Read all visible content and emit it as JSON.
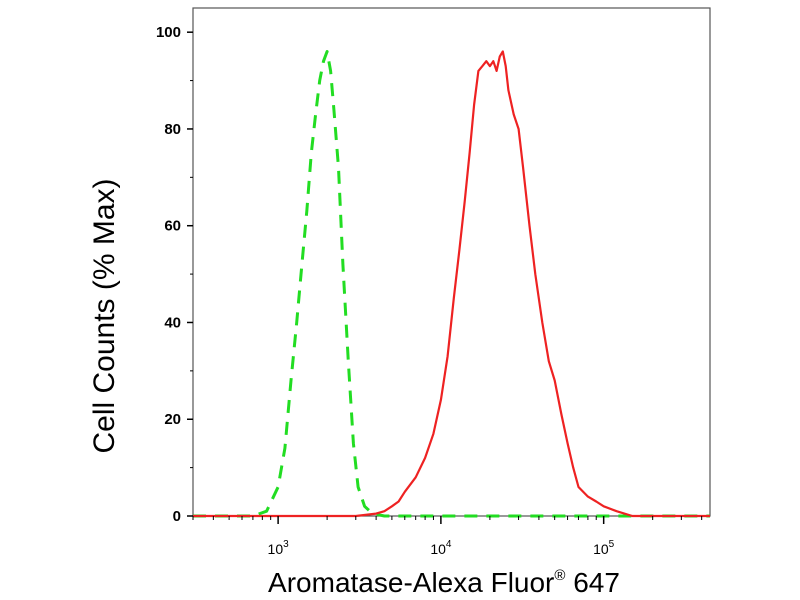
{
  "chart_data": {
    "type": "line",
    "xlabel_main": "Aromatase-Alexa Fluor",
    "xlabel_mark": "®",
    "xlabel_tail": " 647",
    "ylabel": "Cell Counts (% Max)",
    "x_scale": "log",
    "xlim": [
      300,
      450000
    ],
    "ylim": [
      0,
      105
    ],
    "yticks": [
      0,
      20,
      40,
      60,
      80,
      100
    ],
    "yticks_labels": [
      "0",
      "20",
      "40",
      "60",
      "80",
      "100"
    ],
    "xticks": [
      {
        "value": 1000,
        "base": "10",
        "exp": "3"
      },
      {
        "value": 10000,
        "base": "10",
        "exp": "4"
      },
      {
        "value": 100000,
        "base": "10",
        "exp": "5"
      }
    ],
    "grid": false,
    "series": [
      {
        "color": "#22dd22",
        "dashed": true,
        "x": [
          300,
          700,
          850,
          1000,
          1100,
          1200,
          1300,
          1400,
          1500,
          1600,
          1700,
          1800,
          1900,
          2000,
          2100,
          2200,
          2350,
          2500,
          2700,
          2900,
          3100,
          3400,
          3800,
          4500,
          10000,
          30000,
          100000,
          450000
        ],
        "y": [
          0,
          0,
          1,
          6,
          14,
          28,
          40,
          52,
          63,
          75,
          83,
          90,
          94,
          96,
          92,
          84,
          72,
          52,
          32,
          15,
          6,
          2,
          0.5,
          0,
          0,
          0,
          0,
          0
        ]
      },
      {
        "color": "#ee2222",
        "dashed": false,
        "x": [
          300,
          3000,
          4000,
          4500,
          5000,
          5500,
          6000,
          7000,
          8000,
          9000,
          10000,
          11000,
          12000,
          13000,
          14000,
          15000,
          16000,
          17000,
          18000,
          19000,
          20000,
          21000,
          22000,
          23000,
          24000,
          25000,
          26000,
          28000,
          30000,
          32000,
          35000,
          38000,
          42000,
          46000,
          50000,
          55000,
          60000,
          65000,
          70000,
          80000,
          90000,
          100000,
          120000,
          150000,
          450000
        ],
        "y": [
          0,
          0,
          0.5,
          1,
          2,
          3,
          5,
          8,
          12,
          17,
          24,
          33,
          45,
          55,
          65,
          75,
          85,
          92,
          93,
          94,
          93,
          94,
          92,
          95,
          96,
          93,
          88,
          83,
          80,
          72,
          60,
          50,
          40,
          32,
          28,
          21,
          15,
          10,
          6,
          4,
          3,
          2,
          1,
          0,
          0
        ]
      }
    ]
  }
}
